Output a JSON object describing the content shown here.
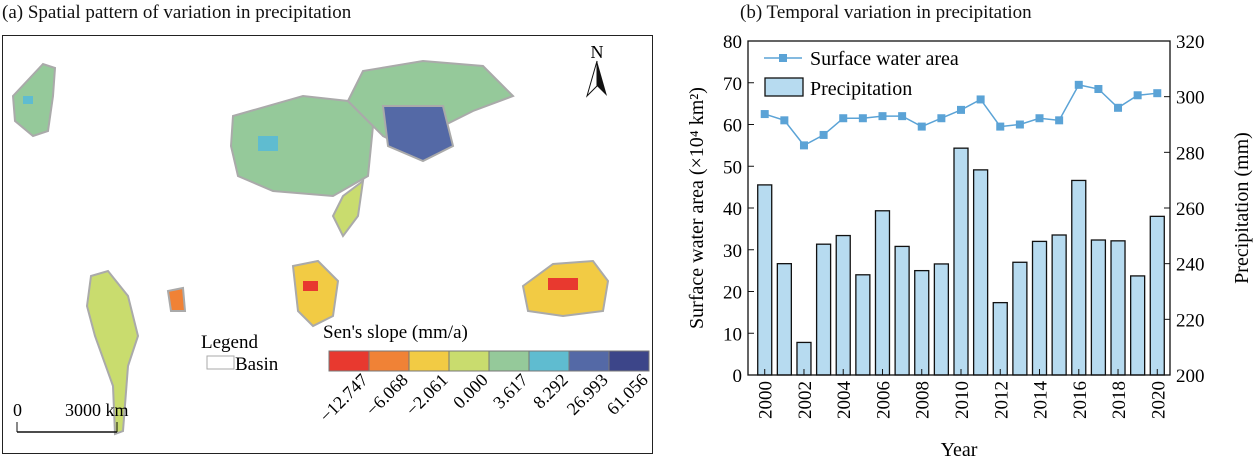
{
  "panel_a": {
    "title": "(a) Spatial pattern of variation in precipitation",
    "north": "N",
    "legend_title": "Legend",
    "legend_basin": "Basin",
    "scale_zero": "0",
    "scale_label": "3000 km",
    "colorbar_title": "Sen's slope (mm/a)",
    "colorbar": [
      {
        "label": "−12.747",
        "color": "#e8392f"
      },
      {
        "label": "−6.068",
        "color": "#f08236"
      },
      {
        "label": "−2.061",
        "color": "#f2cb44"
      },
      {
        "label": "0.000",
        "color": "#c9dc6e"
      },
      {
        "label": "3.617",
        "color": "#95c99a"
      },
      {
        "label": "8.292",
        "color": "#5fbcd0"
      },
      {
        "label": "26.993",
        "color": "#5469a6"
      },
      {
        "label": "61.056",
        "color": "#3c4589"
      }
    ]
  },
  "chart_data": {
    "type": "bar+line",
    "title": "(b) Temporal variation in precipitation",
    "categories": [
      "2000",
      "2001",
      "2002",
      "2003",
      "2004",
      "2005",
      "2006",
      "2007",
      "2008",
      "2009",
      "2010",
      "2011",
      "2012",
      "2013",
      "2014",
      "2015",
      "2016",
      "2017",
      "2018",
      "2019",
      "2020"
    ],
    "tick_labels": [
      "2000",
      "2002",
      "2004",
      "2006",
      "2008",
      "2010",
      "2012",
      "2014",
      "2016",
      "2018",
      "2020"
    ],
    "xlabel": "Year",
    "ylabel_left": "Surface water area (×10⁴ km²)",
    "ylabel_right": "Precipitation (mm)",
    "ylim_left": [
      0,
      80
    ],
    "yticks_left": [
      "0",
      "10",
      "20",
      "30",
      "40",
      "50",
      "60",
      "70",
      "80"
    ],
    "ylim_right": [
      200,
      320
    ],
    "yticks_right": [
      "200",
      "220",
      "240",
      "260",
      "280",
      "300",
      "320"
    ],
    "legend_position": "top-left",
    "series": [
      {
        "name": "Surface water area",
        "type": "line",
        "axis": "left",
        "color": "#5ba3d6",
        "values": [
          62.5,
          61,
          55,
          57.5,
          61.5,
          61.5,
          62,
          62,
          59.5,
          61.5,
          63.5,
          66,
          59.5,
          60,
          61.5,
          61,
          69.5,
          68.5,
          64,
          67,
          67.5
        ]
      },
      {
        "name": "Precipitation",
        "type": "bar",
        "axis": "right",
        "color": "#b7dbf0",
        "values": [
          268.3,
          240,
          211.7,
          247,
          250.1,
          236,
          259,
          246.2,
          237.5,
          239.9,
          281.5,
          273.7,
          226,
          240.5,
          248,
          250.3,
          269.9,
          248.5,
          248.2,
          235.6,
          257
        ]
      }
    ]
  }
}
